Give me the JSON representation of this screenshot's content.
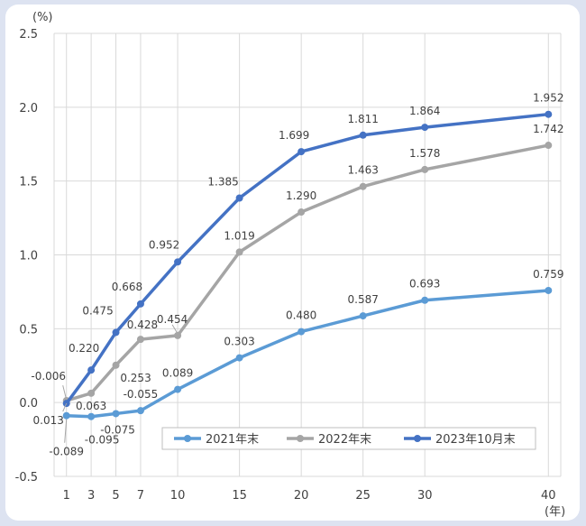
{
  "chart_data": {
    "type": "line",
    "y_unit": "(%)",
    "x_unit": "(年)",
    "x": [
      1,
      3,
      5,
      7,
      10,
      15,
      20,
      25,
      30,
      40
    ],
    "x_ticks": [
      "1",
      "3",
      "5",
      "7",
      "10",
      "15",
      "20",
      "25",
      "30",
      "40"
    ],
    "ylim": [
      -0.5,
      2.5
    ],
    "y_ticks": [
      "-0.5",
      "0.0",
      "0.5",
      "1.0",
      "1.5",
      "2.0",
      "2.5"
    ],
    "grid": true,
    "legend_position": "bottom-right",
    "series": [
      {
        "name": "2021年末",
        "color": "#5b9bd5",
        "values": [
          -0.089,
          -0.095,
          -0.075,
          -0.055,
          0.089,
          0.303,
          0.48,
          0.587,
          0.693,
          0.759
        ],
        "labels": [
          "-0.089",
          "-0.095",
          "-0.075",
          "-0.055",
          "0.089",
          "0.303",
          "0.480",
          "0.587",
          "0.693",
          "0.759"
        ]
      },
      {
        "name": "2022年末",
        "color": "#a5a5a5",
        "values": [
          0.013,
          0.063,
          0.253,
          0.428,
          0.454,
          1.019,
          1.29,
          1.463,
          1.578,
          1.742
        ],
        "labels": [
          "0.013",
          "0.063",
          "0.253",
          "0.428",
          "0.454",
          "1.019",
          "1.290",
          "1.463",
          "1.578",
          "1.742"
        ]
      },
      {
        "name": "2023年10月末",
        "color": "#4472c4",
        "values": [
          -0.006,
          0.22,
          0.475,
          0.668,
          0.952,
          1.385,
          1.699,
          1.811,
          1.864,
          1.952
        ],
        "labels": [
          "-0.006",
          "0.220",
          "0.475",
          "0.668",
          "0.952",
          "1.385",
          "1.699",
          "1.811",
          "1.864",
          "1.952"
        ]
      }
    ]
  }
}
